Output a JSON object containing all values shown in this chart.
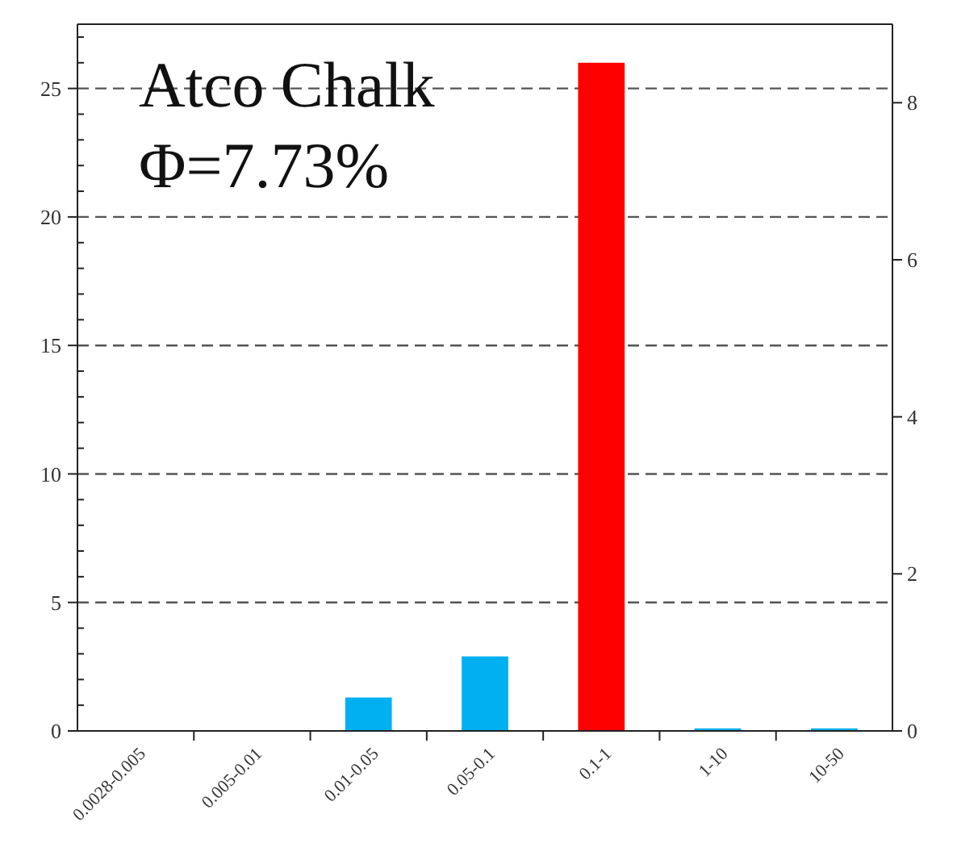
{
  "chart_data": {
    "type": "bar",
    "annotations": [
      "Atco Chalk",
      "Φ=7.73%"
    ],
    "categories": [
      "0.0028-0.005",
      "0.005-0.01",
      "0.01-0.05",
      "0.05-0.1",
      "0.1-1",
      "1-10",
      "10-50"
    ],
    "values": [
      0,
      0,
      1.3,
      2.9,
      26,
      0.1,
      0.1
    ],
    "colors": [
      "#00b0f0",
      "#00b0f0",
      "#00b0f0",
      "#00b0f0",
      "#ff0000",
      "#00b0f0",
      "#00b0f0"
    ],
    "ylim": [
      0,
      27.5
    ],
    "yticks": [
      0,
      {
        "value": 1,
        "label": null
      },
      {
        "value": 2,
        "label": null
      },
      {
        "value": 3,
        "label": null
      },
      {
        "value": 4,
        "label": null
      },
      5,
      {
        "value": 6,
        "label": null
      },
      {
        "value": 7,
        "label": null
      },
      {
        "value": 8,
        "label": null
      },
      {
        "value": 9,
        "label": null
      },
      10,
      {
        "value": 11,
        "label": null
      },
      {
        "value": 12,
        "label": null
      },
      {
        "value": 13,
        "label": null
      },
      {
        "value": 14,
        "label": null
      },
      15,
      {
        "value": 16,
        "label": null
      },
      {
        "value": 17,
        "label": null
      },
      {
        "value": 18,
        "label": null
      },
      {
        "value": 19,
        "label": null
      },
      20,
      {
        "value": 21,
        "label": null
      },
      {
        "value": 22,
        "label": null
      },
      {
        "value": 23,
        "label": null
      },
      {
        "value": 24,
        "label": null
      },
      25,
      {
        "value": 26,
        "label": null
      },
      {
        "value": 27,
        "label": null
      }
    ],
    "y2lim": [
      0,
      9
    ],
    "y2ticks": [
      0,
      2,
      4,
      6,
      8
    ],
    "grid": "y"
  }
}
